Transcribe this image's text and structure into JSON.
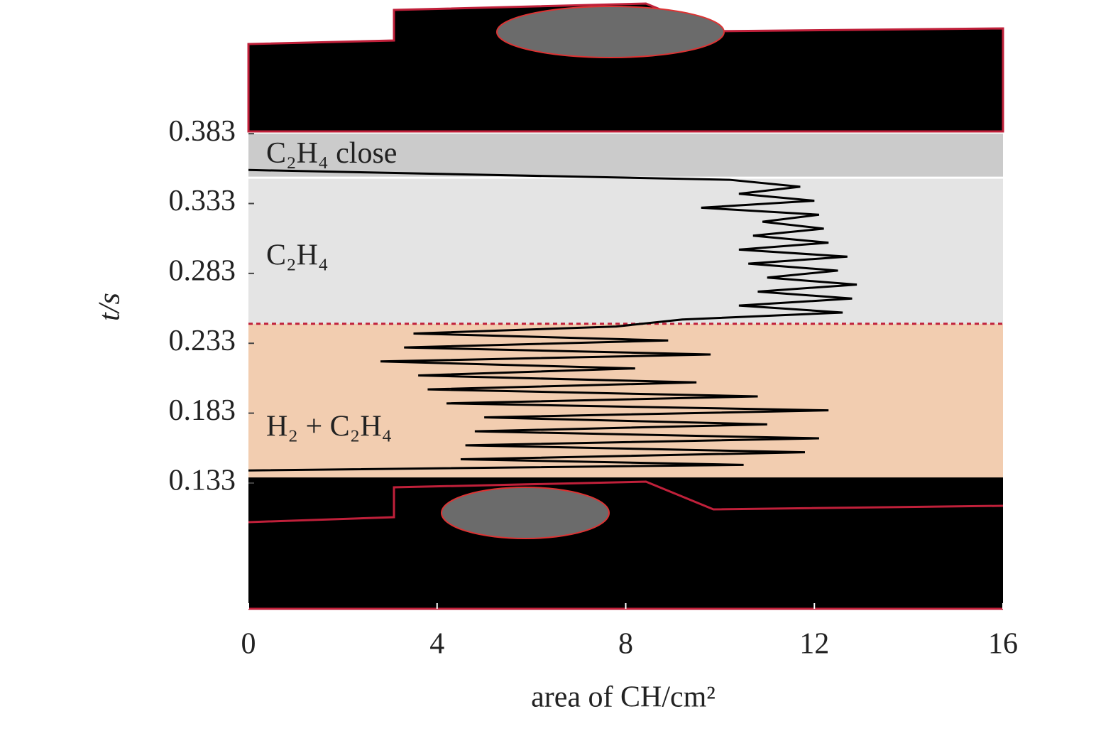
{
  "chart_data": {
    "type": "line",
    "orientation": "horizontal",
    "xlabel": "area of CH/cm²",
    "ylabel": "t/s",
    "x": [
      0.142,
      0.146,
      0.15,
      0.155,
      0.16,
      0.165,
      0.17,
      0.175,
      0.18,
      0.185,
      0.19,
      0.195,
      0.2,
      0.205,
      0.21,
      0.215,
      0.22,
      0.225,
      0.23,
      0.235,
      0.24,
      0.245,
      0.25,
      0.255,
      0.26,
      0.265,
      0.27,
      0.275,
      0.28,
      0.285,
      0.29,
      0.295,
      0.3,
      0.305,
      0.31,
      0.315,
      0.32,
      0.325,
      0.33,
      0.335,
      0.34,
      0.345,
      0.35,
      0.357
    ],
    "values": [
      0,
      10.5,
      4.5,
      11.8,
      4.6,
      12.1,
      4.8,
      11.0,
      5.0,
      12.3,
      4.2,
      10.8,
      3.8,
      9.5,
      3.6,
      8.2,
      2.8,
      9.8,
      3.3,
      8.9,
      3.5,
      7.8,
      9.2,
      12.6,
      10.4,
      12.8,
      10.8,
      12.9,
      11.0,
      12.5,
      10.6,
      12.7,
      10.4,
      12.3,
      10.7,
      12.2,
      10.9,
      12.1,
      9.6,
      12.0,
      10.4,
      11.7,
      10.2,
      0
    ],
    "color": "#000000",
    "regions": [
      {
        "label": "H₂ + C₂H₄",
        "from": 0.137,
        "to": 0.247,
        "color": "#f2cdb0"
      },
      {
        "label": "C₂H₄",
        "from": 0.247,
        "to": 0.3515,
        "color": "#e4e4e4"
      },
      {
        "label": "C₂H₄ close",
        "from": 0.3515,
        "to": 0.383,
        "color": "#cbcbcb"
      }
    ],
    "xlim": [
      0,
      16
    ],
    "xticks": [
      0,
      4,
      8,
      12,
      16
    ],
    "ylim": [
      0.043,
      0.47
    ],
    "yticks": [
      0.133,
      0.183,
      0.233,
      0.283,
      0.333,
      0.383
    ]
  }
}
